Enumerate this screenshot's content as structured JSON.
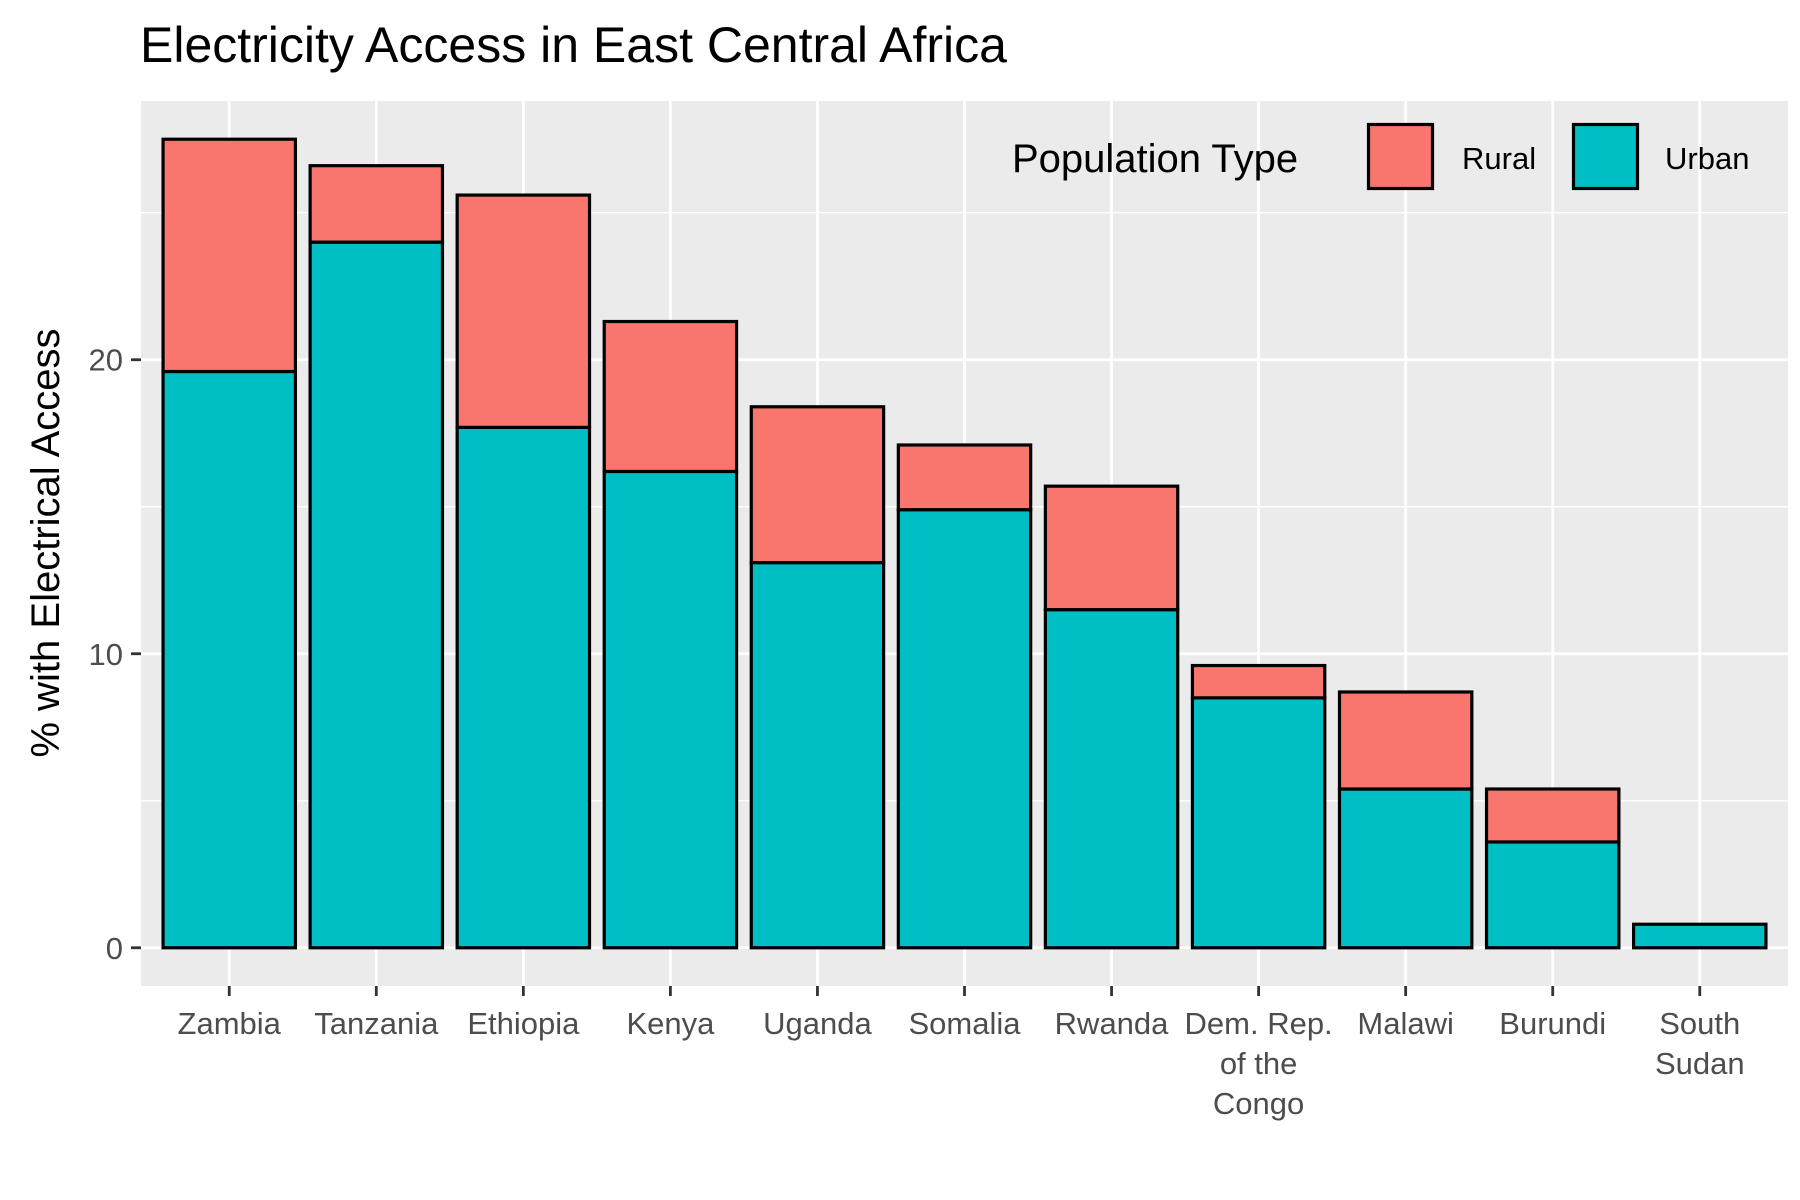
{
  "chart_data": {
    "type": "bar",
    "stacked": true,
    "title": "Electricity Access in East Central Africa",
    "xlabel": "",
    "ylabel": "% with Electrical Access",
    "ylim": [
      -1.3,
      28.8
    ],
    "yticks": [
      0,
      10,
      20
    ],
    "grid": true,
    "legend_position": "top-right",
    "legend_title": "Population Type",
    "categories": [
      [
        "Zambia"
      ],
      [
        "Tanzania"
      ],
      [
        "Ethiopia"
      ],
      [
        "Kenya"
      ],
      [
        "Uganda"
      ],
      [
        "Somalia"
      ],
      [
        "Rwanda"
      ],
      [
        "Dem. Rep.",
        "of the",
        "Congo"
      ],
      [
        "Malawi"
      ],
      [
        "Burundi"
      ],
      [
        "South",
        "Sudan"
      ]
    ],
    "series": [
      {
        "name": "Urban",
        "color": "#00BFC4",
        "values": [
          19.6,
          24.0,
          17.7,
          16.2,
          13.1,
          14.9,
          11.5,
          8.5,
          5.4,
          3.6,
          0.8
        ]
      },
      {
        "name": "Rural",
        "color": "#F8766D",
        "values": [
          7.9,
          2.6,
          7.9,
          5.1,
          5.3,
          2.2,
          4.2,
          1.1,
          3.3,
          1.8,
          0.0
        ]
      }
    ],
    "legend_order": [
      "Rural",
      "Urban"
    ]
  }
}
